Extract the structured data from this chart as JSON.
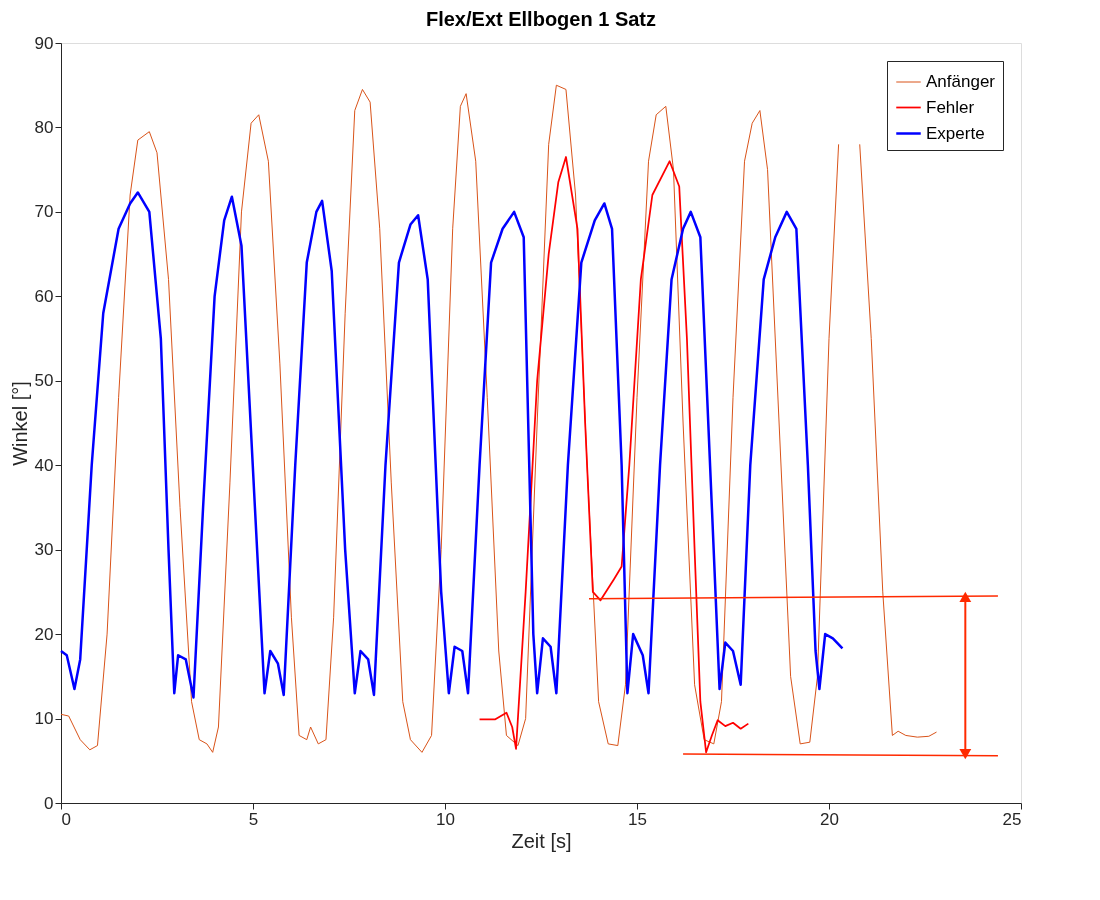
{
  "chart_data": {
    "type": "line",
    "title": "Flex/Ext Ellbogen 1 Satz",
    "xlabel": "Zeit [s]",
    "ylabel": "Winkel [°]",
    "xlim": [
      0,
      25
    ],
    "xticks": [
      0,
      5,
      10,
      15,
      20,
      25
    ],
    "ylim": [
      0,
      90
    ],
    "yticks": [
      0,
      10,
      20,
      30,
      40,
      50,
      60,
      70,
      80,
      90
    ],
    "grid": false,
    "legend": "top right",
    "line_style": "solid",
    "marker": "none",
    "series": [
      {
        "name": "Anfänger",
        "color": "#d95319",
        "x": [
          0,
          0.2,
          0.5,
          0.75,
          0.95,
          1.2,
          1.5,
          1.8,
          2.0,
          2.3,
          2.5,
          2.8,
          3.1,
          3.4,
          3.6,
          3.8,
          3.95,
          4.1,
          4.4,
          4.7,
          4.95,
          5.15,
          5.4,
          5.7,
          6.0,
          6.2,
          6.4,
          6.5,
          6.7,
          6.9,
          7.1,
          7.4,
          7.65,
          7.85,
          8.05,
          8.3,
          8.6,
          8.9,
          9.1,
          9.4,
          9.65,
          9.9,
          10.2,
          10.4,
          10.55,
          10.8,
          11.1,
          11.4,
          11.6,
          11.9,
          12.1,
          12.4,
          12.7,
          12.9,
          13.15,
          13.4,
          13.7,
          14.0,
          14.25,
          14.5,
          14.7,
          15.0,
          15.3,
          15.5,
          15.75,
          15.95,
          16.2,
          16.5,
          16.75,
          17.0,
          17.2,
          17.5,
          17.8,
          18.0,
          18.2,
          18.4,
          18.7,
          19.0,
          19.25,
          19.5,
          19.7,
          20.0,
          20.25,
          20.5,
          20.8,
          21.1,
          21.4,
          21.65,
          21.8,
          22.0,
          22.3,
          22.6,
          22.8
        ],
        "values": [
          10.5,
          10.3,
          7.5,
          6.3,
          6.8,
          20,
          48,
          72,
          78.5,
          79.5,
          77,
          62,
          35,
          12,
          7.5,
          7,
          6,
          9,
          38,
          70,
          80.5,
          81.5,
          76,
          52,
          22,
          8,
          7.5,
          9,
          7,
          7.5,
          22,
          58,
          82,
          84.5,
          83,
          68,
          38,
          12,
          7.5,
          6,
          8,
          30,
          68,
          82.5,
          84,
          76,
          48,
          18,
          8,
          6.8,
          10,
          45,
          78,
          85,
          84.5,
          72,
          40,
          12,
          7,
          6.8,
          14,
          48,
          76,
          81.5,
          82.5,
          75,
          45,
          14,
          7.5,
          7,
          12,
          48,
          76,
          80.5,
          82,
          75,
          45,
          15,
          7,
          7.2,
          15,
          55,
          78,
          null,
          78,
          55,
          25,
          8,
          8.5,
          8,
          7.8,
          7.9,
          8.4
        ]
      },
      {
        "name": "Fehler",
        "color": "#ff0000",
        "x": [
          10.9,
          11.3,
          11.6,
          11.75,
          11.85,
          12.1,
          12.4,
          12.7,
          12.95,
          13.15,
          13.45,
          13.65,
          13.85,
          14.05,
          14.4,
          14.6,
          14.8,
          15.1,
          15.4,
          15.85,
          16.1,
          16.3,
          16.5,
          16.65,
          16.8,
          16.95,
          17.1,
          17.3,
          17.5,
          17.7,
          17.9
        ],
        "values": [
          9.9,
          9.9,
          10.7,
          9,
          6.4,
          25,
          50,
          65,
          73.5,
          76.5,
          68,
          45,
          25,
          24,
          26.5,
          28,
          40,
          62,
          72,
          76,
          73,
          55,
          30,
          12,
          6,
          8,
          9.8,
          9.1,
          9.5,
          8.8,
          9.4
        ]
      },
      {
        "name": "Experte",
        "color": "#0000ff",
        "x": [
          0,
          0.15,
          0.35,
          0.5,
          0.8,
          1.1,
          1.5,
          1.8,
          2.0,
          2.3,
          2.6,
          2.8,
          2.95,
          3.05,
          3.25,
          3.45,
          3.7,
          4.0,
          4.25,
          4.45,
          4.7,
          5.05,
          5.3,
          5.45,
          5.65,
          5.8,
          6.1,
          6.4,
          6.65,
          6.8,
          7.05,
          7.4,
          7.65,
          7.8,
          8.0,
          8.15,
          8.45,
          8.8,
          9.1,
          9.3,
          9.55,
          9.9,
          10.1,
          10.25,
          10.45,
          10.6,
          10.9,
          11.2,
          11.5,
          11.8,
          12.05,
          12.3,
          12.4,
          12.55,
          12.75,
          12.9,
          13.2,
          13.55,
          13.9,
          14.15,
          14.35,
          14.6,
          14.75,
          14.9,
          15.15,
          15.3,
          15.6,
          15.9,
          16.2,
          16.4,
          16.65,
          16.95,
          17.15,
          17.3,
          17.5,
          17.7,
          17.95,
          18.3,
          18.6,
          18.9,
          19.15,
          19.45,
          19.65,
          19.75,
          19.9,
          20.1,
          20.35
        ],
        "values": [
          18,
          17.5,
          13.5,
          17,
          40,
          58,
          68,
          71,
          72.3,
          70,
          55,
          30,
          13,
          17.5,
          17,
          12.5,
          35,
          60,
          69,
          71.8,
          66,
          35,
          13,
          18,
          16.5,
          12.8,
          40,
          64,
          70,
          71.3,
          63,
          30,
          13,
          18,
          17,
          12.8,
          40,
          64,
          68.5,
          69.6,
          62,
          25,
          13,
          18.5,
          18,
          13,
          40,
          64,
          68,
          70,
          67,
          20,
          13,
          19.5,
          18.5,
          13,
          40,
          64,
          69,
          71,
          68,
          40,
          13,
          20,
          17.5,
          13,
          40,
          62,
          68,
          70,
          67,
          35,
          13.5,
          19,
          18,
          14,
          40,
          62,
          67,
          70,
          68,
          40,
          18,
          13.5,
          20,
          19.5,
          18.3
        ]
      },
      {
        "color": "#ff2a00",
        "x": [
          13.75,
          24.4
        ],
        "values": [
          24.2,
          24.5
        ]
      },
      {
        "color": "#ff2a00",
        "x": [
          16.2,
          24.4
        ],
        "values": [
          5.8,
          5.6
        ]
      },
      {
        "color": "#ff2a00",
        "marker": "triangle",
        "x": [
          23.55,
          23.55
        ],
        "values": [
          24.2,
          6.0
        ]
      }
    ]
  }
}
